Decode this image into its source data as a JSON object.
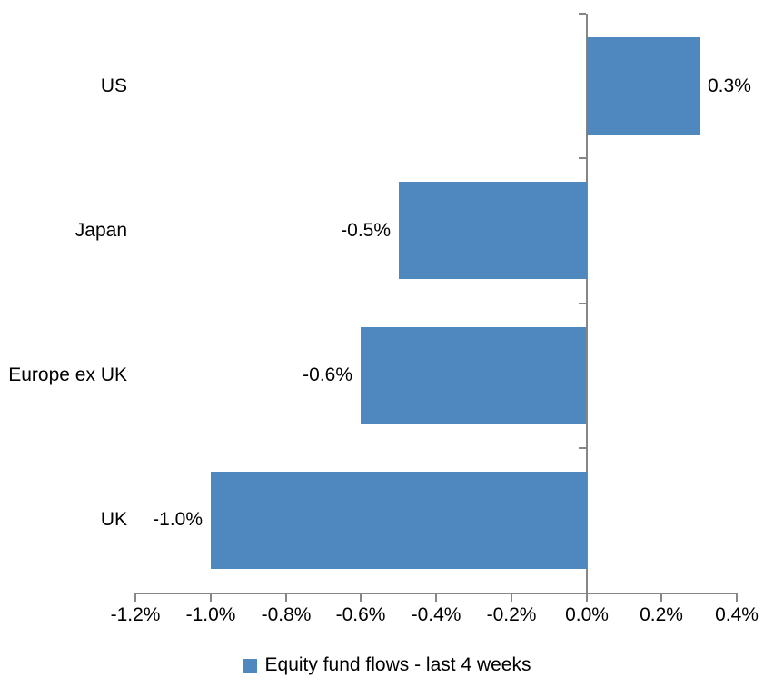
{
  "chart_data": {
    "type": "bar",
    "orientation": "horizontal",
    "title": "",
    "categories": [
      "US",
      "Japan",
      "Europe ex UK",
      "UK"
    ],
    "values": [
      0.3,
      -0.5,
      -0.6,
      -1.0
    ],
    "data_labels": [
      "0.3%",
      "-0.5%",
      "-0.6%",
      "-1.0%"
    ],
    "x_ticks": [
      "-1.2%",
      "-1.0%",
      "-0.8%",
      "-0.6%",
      "-0.4%",
      "-0.2%",
      "0.0%",
      "0.2%",
      "0.4%"
    ],
    "x_tick_values": [
      -1.2,
      -1.0,
      -0.8,
      -0.6,
      -0.4,
      -0.2,
      0.0,
      0.2,
      0.4
    ],
    "xlim": [
      -1.2,
      0.4
    ],
    "xlabel": "",
    "ylabel": "",
    "grid": false,
    "legend_position": "bottom",
    "legend": [
      {
        "label": "Equity fund flows - last 4 weeks",
        "color": "#4F88BF"
      }
    ],
    "bar_color": "#4F88BF",
    "axis_color": "#868686",
    "text_color": "#000000",
    "background_color": "#FFFFFF"
  }
}
